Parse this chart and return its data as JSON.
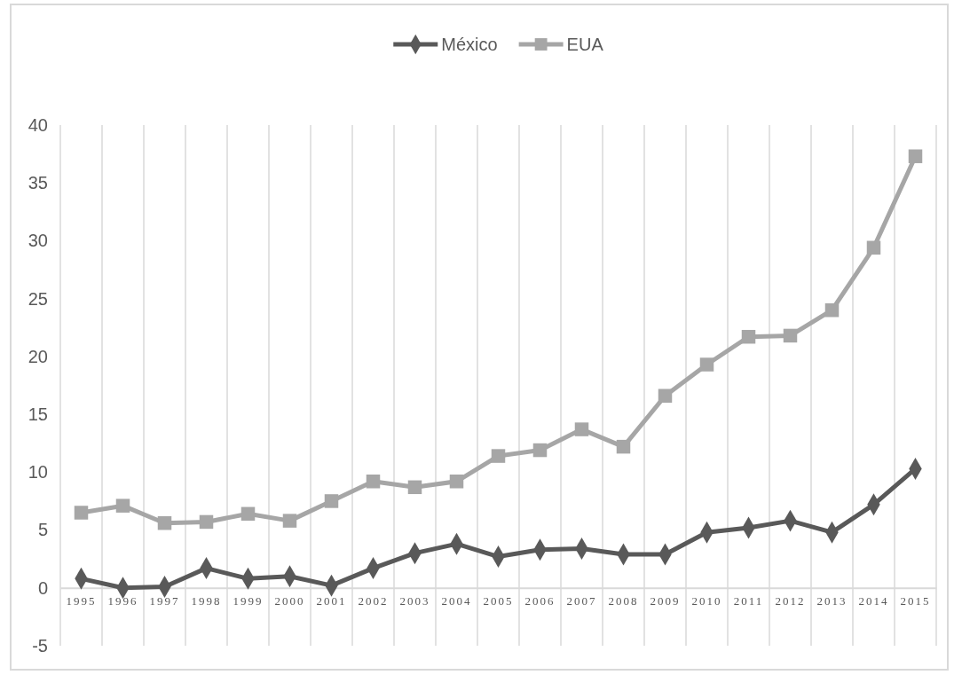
{
  "chart_data": {
    "type": "line",
    "categories": [
      "1995",
      "1996",
      "1997",
      "1998",
      "1999",
      "2000",
      "2001",
      "2002",
      "2003",
      "2004",
      "2005",
      "2006",
      "2007",
      "2008",
      "2009",
      "2010",
      "2011",
      "2012",
      "2013",
      "2014",
      "2015"
    ],
    "series": [
      {
        "name": "México",
        "color": "#595959",
        "marker": "diamond",
        "values": [
          0.8,
          0,
          0.1,
          1.7,
          0.8,
          1.0,
          0.2,
          1.7,
          3.0,
          3.8,
          2.7,
          3.3,
          3.4,
          2.9,
          2.9,
          4.8,
          5.2,
          5.8,
          4.8,
          7.2,
          10.3
        ]
      },
      {
        "name": "EUA",
        "color": "#a6a6a6",
        "marker": "square",
        "values": [
          6.5,
          7.1,
          5.6,
          5.7,
          6.4,
          5.8,
          7.5,
          9.2,
          8.7,
          9.2,
          11.4,
          11.9,
          13.7,
          12.2,
          16.6,
          19.3,
          21.7,
          21.8,
          24.0,
          29.4,
          37.3
        ]
      }
    ],
    "ylim": [
      -5,
      40
    ],
    "yticks": [
      -5,
      0,
      5,
      10,
      15,
      20,
      25,
      30,
      35,
      40
    ],
    "grid": "x",
    "legend": "top"
  }
}
